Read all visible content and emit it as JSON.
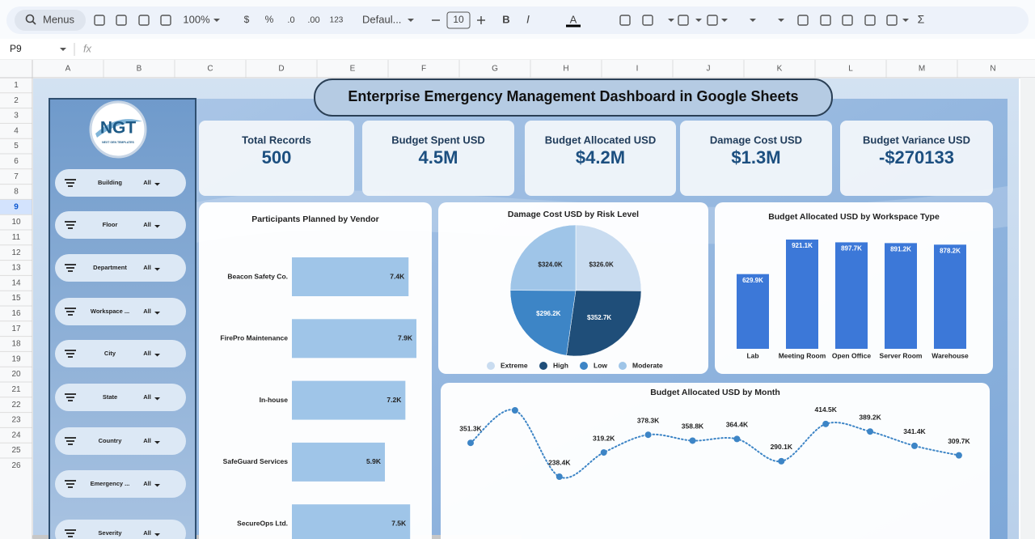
{
  "toolbar": {
    "search": "Menus",
    "zoom": "100%",
    "currency": "$",
    "percent": "%",
    "decrease_decimals": ".0",
    "increase_decimals": ".00",
    "number_format": "123",
    "font": "Defaul...",
    "font_size": "10",
    "bold": "B",
    "italic": "I",
    "text_color": "A",
    "functions": "Σ"
  },
  "formula_bar": {
    "cell": "P9",
    "fx": "fx"
  },
  "columns": [
    "A",
    "B",
    "C",
    "D",
    "E",
    "F",
    "G",
    "H",
    "I",
    "J",
    "K",
    "L",
    "M",
    "N"
  ],
  "rows": [
    1,
    2,
    3,
    4,
    5,
    6,
    7,
    8,
    9,
    10,
    11,
    12,
    13,
    14,
    15,
    16,
    17,
    18,
    19,
    20,
    21,
    22,
    23,
    24,
    25,
    26
  ],
  "dashboard": {
    "title": "Enterprise Emergency Management Dashboard in Google Sheets",
    "logo": {
      "text": "NGT",
      "subtitle": "NEXT GEN TEMPLATES"
    },
    "filters": [
      {
        "label": "Building",
        "value": "All"
      },
      {
        "label": "Floor",
        "value": "All"
      },
      {
        "label": "Department",
        "value": "All"
      },
      {
        "label": "Workspace ...",
        "value": "All"
      },
      {
        "label": "City",
        "value": "All"
      },
      {
        "label": "State",
        "value": "All"
      },
      {
        "label": "Country",
        "value": "All"
      },
      {
        "label": "Emergency ...",
        "value": "All"
      },
      {
        "label": "Severity",
        "value": "All"
      }
    ],
    "kpis": [
      {
        "label": "Total Records",
        "value": "500"
      },
      {
        "label": "Budget Spent USD",
        "value": "4.5M"
      },
      {
        "label": "Budget Allocated USD",
        "value": "$4.2M"
      },
      {
        "label": "Damage Cost USD",
        "value": "$1.3M"
      },
      {
        "label": "Budget Variance USD",
        "value": "-$270133"
      }
    ]
  },
  "chart_data": [
    {
      "type": "hbar",
      "title": "Participants Planned by Vendor",
      "categories": [
        "Beacon Safety Co.",
        "FirePro Maintenance",
        "In-house",
        "SafeGuard Services",
        "SecureOps Ltd."
      ],
      "values": [
        7400,
        7900,
        7200,
        5900,
        7500
      ],
      "value_labels": [
        "7.4K",
        "7.9K",
        "7.2K",
        "5.9K",
        "7.5K"
      ],
      "color": "#9fc5e8"
    },
    {
      "type": "pie",
      "title": "Damage Cost USD by Risk Level",
      "categories": [
        "Extreme",
        "High",
        "Low",
        "Moderate"
      ],
      "values": [
        326000,
        352700,
        296200,
        324000
      ],
      "value_labels": [
        "$326.0K",
        "$352.7K",
        "$296.2K",
        "$324.0K"
      ],
      "colors": [
        "#c9dcf0",
        "#1f4e79",
        "#3d85c6",
        "#9fc5e8"
      ],
      "legend": "bottom"
    },
    {
      "type": "bar",
      "title": "Budget Allocated USD by Workspace Type",
      "categories": [
        "Lab",
        "Meeting Room",
        "Open Office",
        "Server Room",
        "Warehouse"
      ],
      "values": [
        629900,
        921100,
        897700,
        891200,
        878200
      ],
      "value_labels": [
        "629.9K",
        "921.1K",
        "897.7K",
        "891.2K",
        "878.2K"
      ],
      "color": "#3c78d8"
    },
    {
      "type": "line",
      "title": "Budget Allocated USD by Month",
      "values": [
        351300,
        460000,
        238400,
        319200,
        378300,
        358800,
        364400,
        290100,
        414500,
        389200,
        341400,
        309700
      ],
      "value_labels": [
        "351.3K",
        null,
        "238.4K",
        "319.2K",
        "378.3K",
        "358.8K",
        "364.4K",
        "290.1K",
        "414.5K",
        "389.2K",
        "341.4K",
        "309.7K"
      ],
      "color": "#3d85c6",
      "smooth": true,
      "dotted": true
    }
  ]
}
